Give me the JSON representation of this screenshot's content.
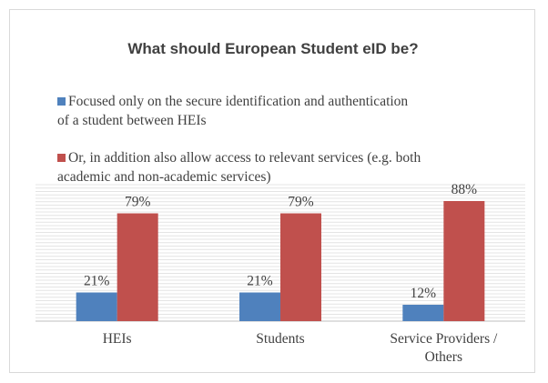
{
  "chart_data": {
    "type": "bar",
    "title": "What should European Student eID be?",
    "categories": [
      "HEIs",
      "Students",
      "Service Providers / Others"
    ],
    "category_lines": [
      [
        "HEIs"
      ],
      [
        "Students"
      ],
      [
        "Service Providers /",
        "Others"
      ]
    ],
    "series": [
      {
        "name": "Focused only on the secure identification and authentication of a student between HEIs",
        "name_lines": [
          "Focused only on the secure identification and authentication",
          "of a student between HEIs"
        ],
        "color": "#4f81bd",
        "values": [
          21,
          21,
          12
        ],
        "labels": [
          "21%",
          "21%",
          "12%"
        ]
      },
      {
        "name": "Or, in addition also allow access to relevant services (e.g. both academic and non-academic services)",
        "name_lines": [
          "Or, in addition also allow access to relevant services (e.g. both",
          "academic and non-academic services)"
        ],
        "color": "#c0504d",
        "values": [
          79,
          79,
          88
        ],
        "labels": [
          "79%",
          "79%",
          "88%"
        ]
      }
    ],
    "ylim": [
      0,
      100
    ],
    "grid": true,
    "legend_position": "top",
    "xlabel": "",
    "ylabel": ""
  }
}
